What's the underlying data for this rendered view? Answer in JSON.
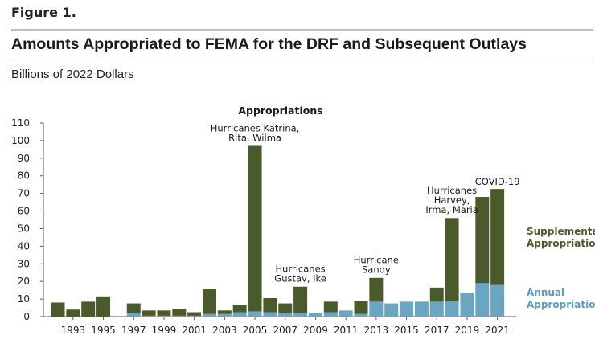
{
  "figure_label": "Figure 1.",
  "title": "Amounts Appropriated to FEMA for the DRF and Subsequent Outlays",
  "subtitle": "Billions of 2022 Dollars",
  "colors": {
    "supplemental": "#4a5a2b",
    "annual": "#6aa5c2",
    "supplemental_text": "#4a5a2b",
    "annual_text": "#5b9fc0",
    "axis": "#555555"
  },
  "chart_data": {
    "type": "bar",
    "stacked": true,
    "title": "Appropriations",
    "ylim": [
      0,
      110
    ],
    "yticks": [
      0,
      10,
      20,
      30,
      40,
      50,
      60,
      70,
      80,
      90,
      100,
      110
    ],
    "categories": [
      "1992",
      "1993",
      "1994",
      "1995",
      "1996",
      "1997",
      "1998",
      "1999",
      "2000",
      "2001",
      "2002",
      "2003",
      "2004",
      "2005",
      "2006",
      "2007",
      "2008",
      "2009",
      "2010",
      "2011",
      "2012",
      "2013",
      "2014",
      "2015",
      "2016",
      "2017",
      "2018",
      "2019",
      "2020",
      "2021"
    ],
    "xtick_labels": [
      "1993",
      "1995",
      "1997",
      "1999",
      "2001",
      "2003",
      "2005",
      "2007",
      "2009",
      "2011",
      "2013",
      "2015",
      "2017",
      "2019",
      "2021"
    ],
    "series": [
      {
        "name": "Annual Appropriations",
        "values": [
          0,
          0,
          0,
          0,
          0,
          2,
          0.5,
          0.5,
          0.5,
          0.5,
          1.5,
          1.5,
          2.5,
          3,
          2.5,
          2,
          2,
          2,
          2.5,
          3.5,
          1.5,
          8.5,
          7.5,
          8.5,
          8.5,
          8.5,
          9,
          13.5,
          19,
          18
        ]
      },
      {
        "name": "Supplemental Appropriations",
        "values": [
          8,
          4,
          8.5,
          11.5,
          0,
          5.5,
          3,
          3,
          4,
          2,
          14,
          2,
          4,
          94,
          8,
          5.5,
          15,
          0,
          6,
          0,
          7.5,
          13.5,
          0,
          0,
          0,
          8,
          47,
          0,
          49,
          54.5
        ]
      }
    ],
    "annotations": [
      {
        "lines": [
          "Hurricanes Katrina,",
          "Rita, Wilma"
        ],
        "year": "2005",
        "y": 98
      },
      {
        "lines": [
          "Hurricanes",
          "Gustav, Ike"
        ],
        "year": "2008",
        "y": 18
      },
      {
        "lines": [
          "Hurricane",
          "Sandy"
        ],
        "year": "2013",
        "y": 23
      },
      {
        "lines": [
          "Hurricanes",
          "Harvey,",
          "Irma, Maria"
        ],
        "year": "2018",
        "y": 57
      },
      {
        "lines": [
          "COVID-19"
        ],
        "year": "2021",
        "y": 73
      }
    ],
    "legend": [
      {
        "lines": [
          "Supplemental",
          "Appropriations"
        ],
        "series": "Supplemental Appropriations"
      },
      {
        "lines": [
          "Annual",
          "Appropriations"
        ],
        "series": "Annual Appropriations"
      }
    ]
  }
}
